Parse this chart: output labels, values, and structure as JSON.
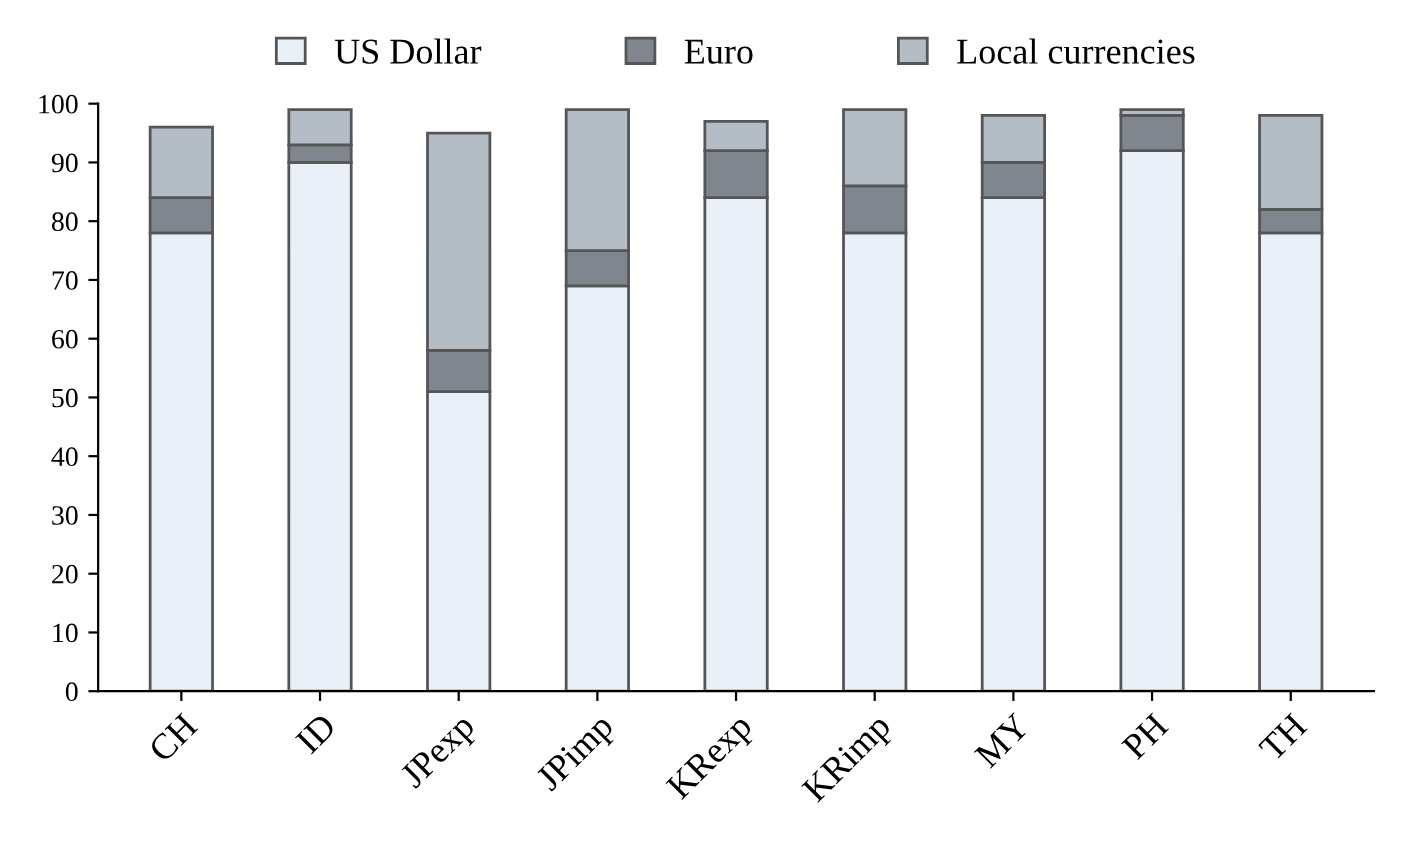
{
  "chart_data": {
    "type": "bar",
    "stacked": true,
    "categories": [
      "CH",
      "ID",
      "JPexp",
      "JPimp",
      "KRexp",
      "KRimp",
      "MY",
      "PH",
      "TH"
    ],
    "series": [
      {
        "name": "US Dollar",
        "color": "#eaf0f8",
        "values": [
          78,
          90,
          51,
          69,
          84,
          78,
          84,
          92,
          78
        ]
      },
      {
        "name": "Euro",
        "color": "#7f868e",
        "values": [
          6,
          3,
          7,
          6,
          8,
          8,
          6,
          6,
          4
        ]
      },
      {
        "name": "Local currencies",
        "color": "#b4bcc6",
        "values": [
          12,
          6,
          37,
          24,
          5,
          13,
          8,
          1,
          16
        ]
      }
    ],
    "ylim": [
      0,
      100
    ],
    "yticks": [
      0,
      10,
      20,
      30,
      40,
      50,
      60,
      70,
      80,
      90,
      100
    ],
    "grid": false,
    "legend": "top"
  }
}
